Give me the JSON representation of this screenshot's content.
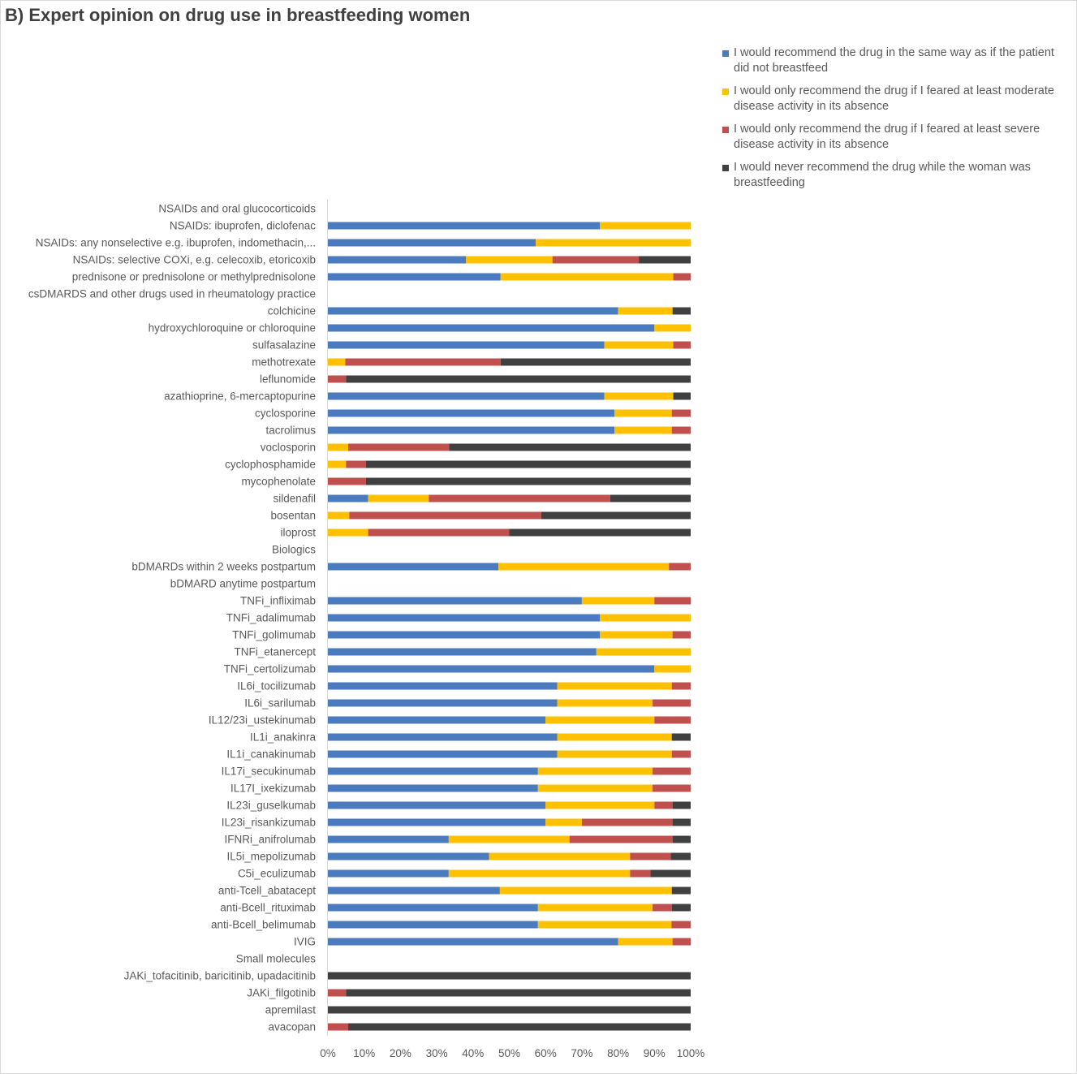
{
  "chart_data": {
    "type": "bar",
    "orientation": "horizontal",
    "stacked": true,
    "percent": true,
    "title": "B) Expert opinion on drug use in breastfeeding women",
    "xlabel": "",
    "ylabel": "",
    "xlim": [
      0,
      100
    ],
    "x_ticks": [
      "0%",
      "10%",
      "20%",
      "30%",
      "40%",
      "50%",
      "60%",
      "70%",
      "80%",
      "90%",
      "100%"
    ],
    "grid": false,
    "legend_position": "top-right",
    "series": [
      {
        "name": "I would recommend the drug in the same way as if the patient did not breastfeed",
        "color": "#4a7bbf"
      },
      {
        "name": " I would only recommend the drug if I feared at least moderate disease activity in its absence",
        "color": "#ffc000"
      },
      {
        "name": "I would only recommend the drug  if I feared at least severe disease activity in its absence",
        "color": "#c0504d"
      },
      {
        "name": "I would never recommend the drug while the woman was breastfeeding",
        "color": "#404040"
      }
    ],
    "categories": [
      "NSAIDs and oral glucocorticoids",
      "NSAIDs: ibuprofen, diclofenac",
      "NSAIDs: any nonselective e.g. ibuprofen, indomethacin,...",
      "NSAIDs: selective COXi, e.g. celecoxib, etoricoxib",
      "prednisone or prednisolone or methylprednisolone",
      "csDMARDS and other drugs used in rheumatology practice",
      "colchicine",
      "hydroxychloroquine or chloroquine",
      "sulfasalazine",
      "methotrexate",
      "leflunomide",
      "azathioprine, 6-mercaptopurine",
      "cyclosporine",
      "tacrolimus",
      "voclosporin",
      "cyclophosphamide",
      "mycophenolate",
      "sildenafil",
      "bosentan",
      "iloprost",
      "Biologics",
      "bDMARDs within 2 weeks postpartum",
      "bDMARD anytime postpartum",
      "TNFi_infliximab",
      "TNFi_adalimumab",
      "TNFi_golimumab",
      "TNFi_etanercept",
      "TNFi_certolizumab",
      "IL6i_tocilizumab",
      "IL6i_sarilumab",
      "IL12/23i_ustekinumab",
      "IL1i_anakinra",
      "IL1i_canakinumab",
      "IL17i_secukinumab",
      "IL17I_ixekizumab",
      "IL23i_guselkumab",
      "IL23i_risankizumab",
      "IFNRi_anifrolumab",
      "IL5i_mepolizumab",
      "C5i_eculizumab",
      "anti-Tcell_abatacept",
      "anti-Bcell_rituximab",
      "anti-Bcell_belimumab",
      "IVIG",
      "Small molecules",
      "JAKi_tofacitinib, baricitinib, upadacitinib",
      "JAKi_filgotinib",
      "apremilast",
      "avacopan"
    ],
    "values": [
      null,
      [
        75,
        25,
        0,
        0
      ],
      [
        57.3,
        42.7,
        0,
        0
      ],
      [
        38.1,
        23.8,
        23.8,
        14.3
      ],
      [
        47.6,
        47.6,
        4.8,
        0
      ],
      null,
      [
        80,
        15,
        0,
        5
      ],
      [
        90,
        10,
        0,
        0
      ],
      [
        76.2,
        19,
        4.8,
        0
      ],
      [
        0,
        4.8,
        42.8,
        52.4
      ],
      [
        0,
        0,
        5,
        95
      ],
      [
        76.2,
        19,
        0,
        4.8
      ],
      [
        79,
        15.8,
        5.2,
        0
      ],
      [
        79,
        15.8,
        5.2,
        0
      ],
      [
        0,
        5.6,
        27.8,
        66.6
      ],
      [
        0,
        5,
        5.5,
        89.5
      ],
      [
        0,
        0,
        10.5,
        89.5
      ],
      [
        11.1,
        16.7,
        50,
        22.2
      ],
      [
        0,
        5.9,
        52.9,
        41.2
      ],
      [
        0,
        11.1,
        38.9,
        50
      ],
      null,
      [
        47,
        47,
        6,
        0
      ],
      null,
      [
        70,
        20,
        10,
        0
      ],
      [
        75,
        25,
        0,
        0
      ],
      [
        75,
        20,
        5,
        0
      ],
      [
        74,
        26,
        0,
        0
      ],
      [
        90,
        10,
        0,
        0
      ],
      [
        63.2,
        31.6,
        5.2,
        0
      ],
      [
        63.2,
        26.3,
        10.5,
        0
      ],
      [
        60,
        30,
        10,
        0
      ],
      [
        63.2,
        31.6,
        0,
        5.2
      ],
      [
        63.2,
        31.6,
        5.2,
        0
      ],
      [
        57.9,
        31.6,
        10.5,
        0
      ],
      [
        57.9,
        31.6,
        10.5,
        0
      ],
      [
        60,
        30,
        5,
        5
      ],
      [
        60,
        10,
        25,
        5
      ],
      [
        33.3,
        33.3,
        28.4,
        5
      ],
      [
        44.4,
        38.9,
        11.2,
        5.5
      ],
      [
        33.3,
        50,
        5.6,
        11.1
      ],
      [
        47.4,
        47.4,
        0,
        5.2
      ],
      [
        57.9,
        31.6,
        5.3,
        5.2
      ],
      [
        57.9,
        36.8,
        5.3,
        0
      ],
      [
        80,
        15,
        5,
        0
      ],
      null,
      [
        0,
        0,
        0,
        100
      ],
      [
        0,
        0,
        5,
        95
      ],
      [
        0,
        0,
        0,
        100
      ],
      [
        0,
        0,
        5.6,
        94.4
      ]
    ]
  }
}
